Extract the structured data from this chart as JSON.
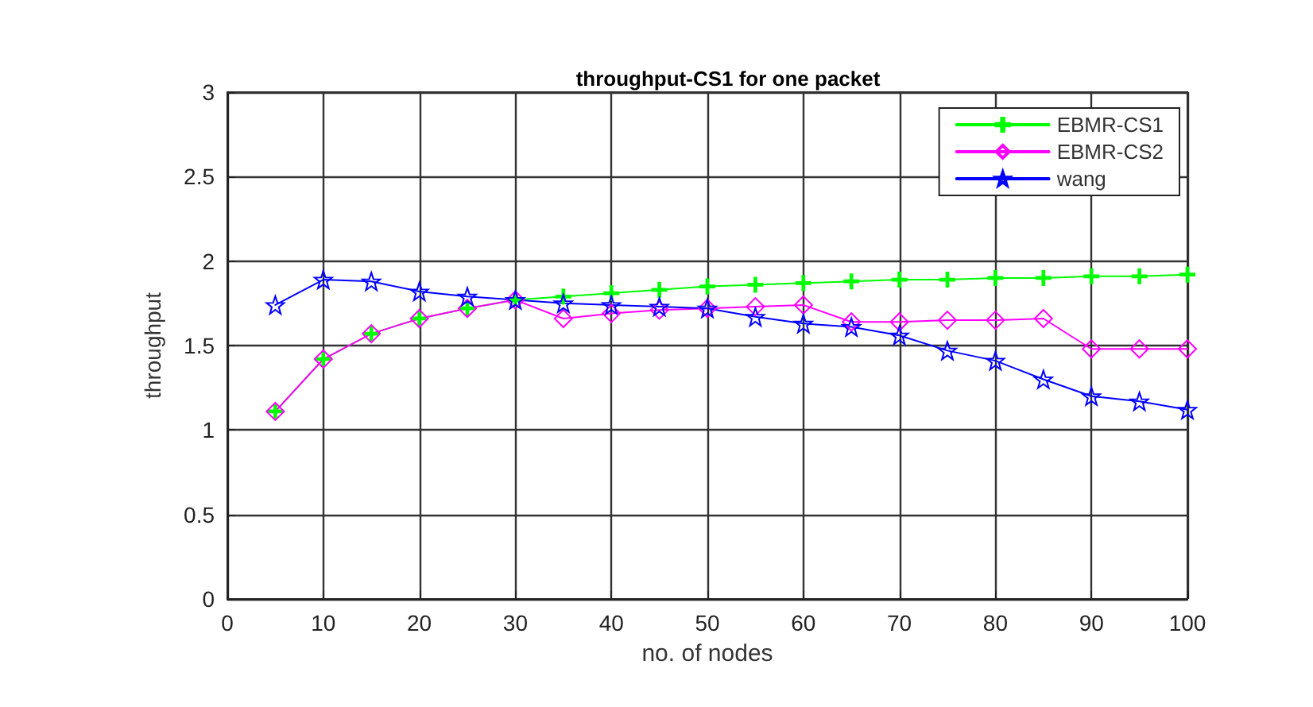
{
  "chart_data": {
    "type": "line",
    "title": "throughput-CS1 for one packet",
    "xlabel": "no. of nodes",
    "ylabel": "throughput",
    "x": [
      5,
      10,
      15,
      20,
      25,
      30,
      35,
      40,
      45,
      50,
      55,
      60,
      65,
      70,
      75,
      80,
      85,
      90,
      95,
      100
    ],
    "series": [
      {
        "name": "EBMR-CS1",
        "color": "#00ff00",
        "marker": "cross",
        "values": [
          1.11,
          1.42,
          1.57,
          1.66,
          1.72,
          1.77,
          1.79,
          1.81,
          1.83,
          1.85,
          1.86,
          1.87,
          1.88,
          1.89,
          1.89,
          1.9,
          1.9,
          1.91,
          1.91,
          1.92
        ]
      },
      {
        "name": "EBMR-CS2",
        "color": "#ff00ff",
        "marker": "diamond",
        "values": [
          1.11,
          1.42,
          1.57,
          1.66,
          1.72,
          1.77,
          1.66,
          1.69,
          1.71,
          1.72,
          1.73,
          1.74,
          1.64,
          1.64,
          1.65,
          1.65,
          1.66,
          1.48,
          1.48,
          1.48
        ]
      },
      {
        "name": "wang",
        "color": "#0000ff",
        "marker": "star",
        "values": [
          1.74,
          1.89,
          1.88,
          1.82,
          1.79,
          1.77,
          1.75,
          1.74,
          1.73,
          1.72,
          1.67,
          1.63,
          1.61,
          1.56,
          1.47,
          1.41,
          1.3,
          1.2,
          1.17,
          1.12
        ]
      }
    ],
    "xlim": [
      0,
      100
    ],
    "xticks": [
      0,
      10,
      20,
      30,
      40,
      50,
      60,
      70,
      80,
      90,
      100
    ],
    "ylim": [
      0,
      3
    ],
    "yticks": [
      0,
      0.5,
      1,
      1.5,
      2,
      2.5,
      3
    ],
    "grid": true,
    "legend": "top right",
    "line_style": "solid"
  }
}
